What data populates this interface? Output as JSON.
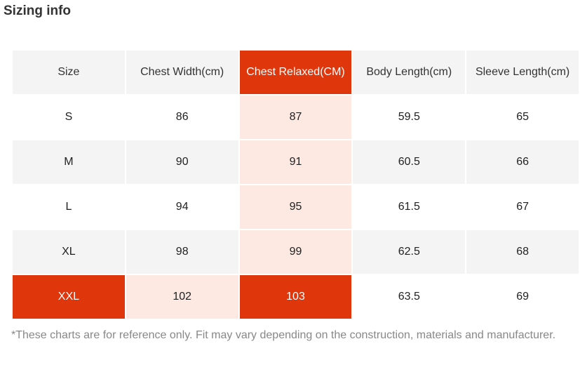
{
  "title": "Sizing info",
  "table": {
    "headers": [
      "Size",
      "Chest Width(cm)",
      "Chest Relaxed(CM)",
      "Body Length(cm)",
      "Sleeve Length(cm)"
    ],
    "rows": [
      [
        "S",
        "86",
        "87",
        "59.5",
        "65"
      ],
      [
        "M",
        "90",
        "91",
        "60.5",
        "66"
      ],
      [
        "L",
        "94",
        "95",
        "61.5",
        "67"
      ],
      [
        "XL",
        "98",
        "99",
        "62.5",
        "68"
      ],
      [
        "XXL",
        "102",
        "103",
        "63.5",
        "69"
      ]
    ],
    "highlighted_column": "Chest Relaxed(CM)",
    "highlighted_size": "XXL"
  },
  "colors": {
    "highlight": "#e0360c",
    "highlight_soft": "#fde8e2",
    "row_shade": "#f4f4f4"
  },
  "note": "*These charts are for reference only. Fit may vary depending on the construction, materials and manufacturer."
}
